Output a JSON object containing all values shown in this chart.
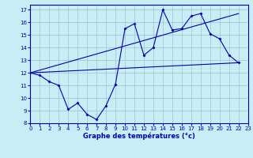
{
  "xlabel": "Graphe des températures (°c)",
  "xlim": [
    0,
    23
  ],
  "ylim": [
    8,
    17.4
  ],
  "yticks": [
    8,
    9,
    10,
    11,
    12,
    13,
    14,
    15,
    16,
    17
  ],
  "xticks": [
    0,
    1,
    2,
    3,
    4,
    5,
    6,
    7,
    8,
    9,
    10,
    11,
    12,
    13,
    14,
    15,
    16,
    17,
    18,
    19,
    20,
    21,
    22,
    23
  ],
  "background_color": "#c8eef5",
  "grid_color": "#aabbd0",
  "line_color": "#0000aa",
  "line1_x": [
    0,
    1,
    2,
    3,
    4,
    5,
    6,
    7,
    8,
    9,
    10,
    11,
    12,
    13,
    14,
    15,
    16,
    17,
    18,
    19,
    20,
    21,
    22
  ],
  "line1_y": [
    12.0,
    11.8,
    11.3,
    11.0,
    9.1,
    9.6,
    8.7,
    8.3,
    9.4,
    11.1,
    15.5,
    15.9,
    13.4,
    14.0,
    17.0,
    15.4,
    15.5,
    16.5,
    16.7,
    15.1,
    14.7,
    13.4,
    12.8
  ],
  "line2_x": [
    0,
    22
  ],
  "line2_y": [
    12.0,
    12.8
  ],
  "line3_x": [
    0,
    22
  ],
  "line3_y": [
    12.0,
    16.7
  ]
}
